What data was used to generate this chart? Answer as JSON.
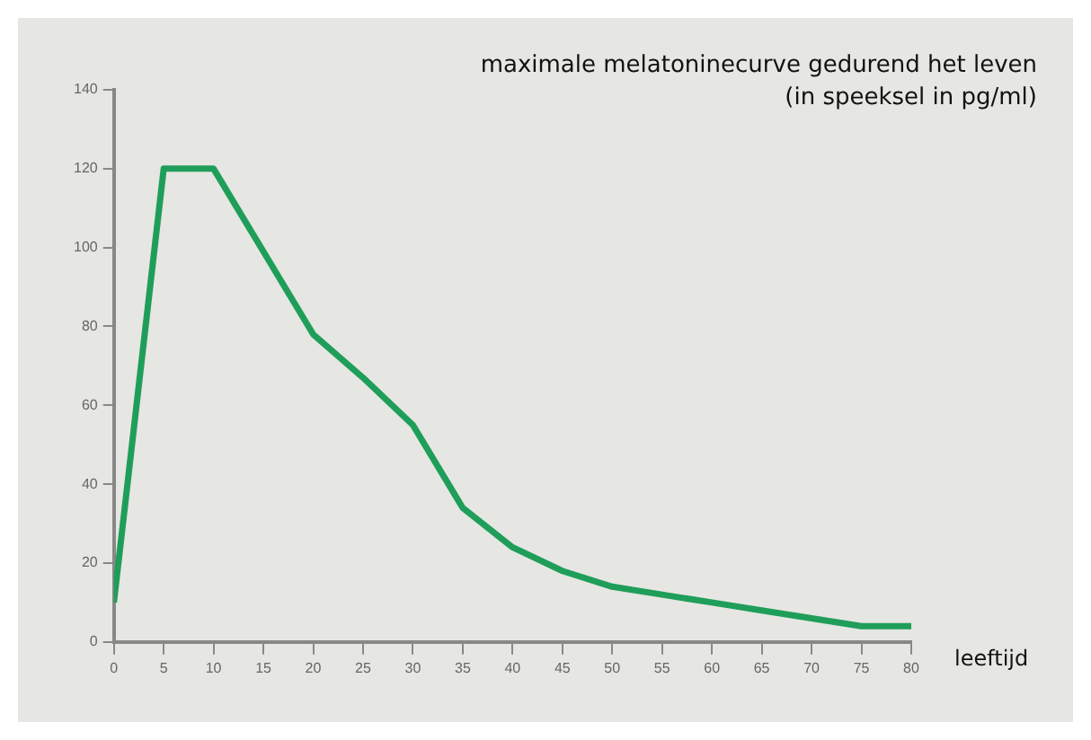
{
  "chart_data": {
    "type": "line",
    "title": "maximale melatoninecurve gedurend het leven",
    "subtitle": "(in speeksel in pg/ml)",
    "xlabel": "leeftijd",
    "x": [
      0,
      5,
      10,
      15,
      20,
      25,
      30,
      35,
      40,
      45,
      50,
      55,
      60,
      65,
      70,
      75,
      80
    ],
    "series": [
      {
        "color": "#1f9e5a",
        "values": [
          10,
          120,
          120,
          99,
          78,
          67,
          55,
          34,
          24,
          18,
          14,
          12,
          10,
          8,
          6,
          4,
          4
        ]
      }
    ],
    "xlim": [
      0,
      80
    ],
    "xticks": [
      0,
      5,
      10,
      15,
      20,
      25,
      30,
      35,
      40,
      45,
      50,
      55,
      60,
      65,
      70,
      75,
      80
    ],
    "ylim": [
      0,
      140
    ],
    "yticks": [
      0,
      20,
      40,
      60,
      80,
      100,
      120,
      140
    ],
    "grid": false,
    "legend": false,
    "marker": "none",
    "line_style": "solid"
  }
}
